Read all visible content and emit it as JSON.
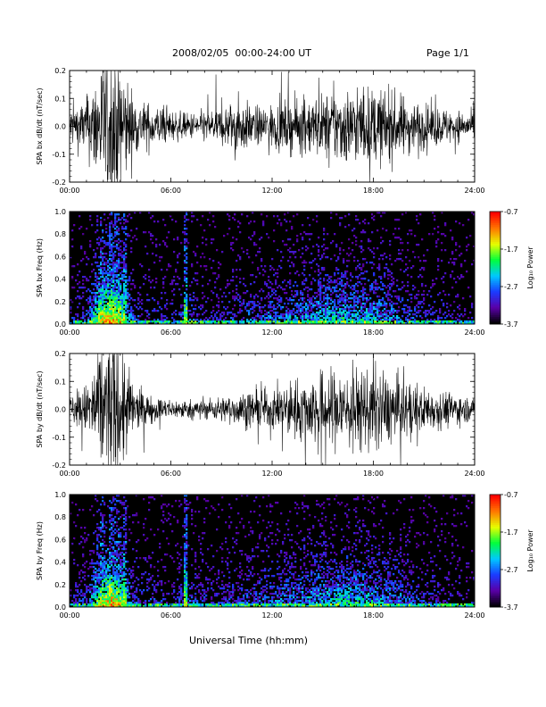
{
  "header": {
    "title": "2008/02/05  00:00-24:00 UT",
    "page": "Page 1/1"
  },
  "footer": {
    "xlabel": "Universal Time (hh:mm)"
  },
  "colorbar": {
    "label": "Log₁₀ Power",
    "tick_labels": [
      "-0.7",
      "-1.7",
      "-2.7",
      "-3.7"
    ],
    "range": [
      -3.7,
      -0.7
    ],
    "colors": [
      "#000000",
      "#5a00a8",
      "#1a3cff",
      "#00c8ff",
      "#00ff3c",
      "#e6ff00",
      "#ff7800",
      "#ff0000"
    ]
  },
  "chart_data": [
    {
      "type": "line",
      "ylabel": "SPA bx dB/dt (nT/sec)",
      "x_range_hours": [
        0,
        24
      ],
      "xtick_labels": [
        "00:00",
        "06:00",
        "12:00",
        "18:00",
        "24:00"
      ],
      "ylim": [
        -0.2,
        0.2
      ],
      "ytick_labels": [
        "0.2",
        "0.1",
        "0.0",
        "-0.1",
        "-0.2"
      ],
      "line_color": "#000000",
      "envelope": {
        "hours": [
          0,
          1,
          1.8,
          2.2,
          2.5,
          3,
          3.5,
          4,
          5,
          6,
          7,
          8,
          9,
          10,
          11,
          12,
          13,
          14,
          15,
          16,
          17,
          18,
          19,
          20,
          21,
          22,
          23,
          24
        ],
        "amplitude": [
          0.06,
          0.09,
          0.2,
          0.25,
          0.25,
          0.22,
          0.14,
          0.08,
          0.07,
          0.05,
          0.04,
          0.05,
          0.06,
          0.09,
          0.06,
          0.07,
          0.08,
          0.09,
          0.1,
          0.12,
          0.12,
          0.12,
          0.11,
          0.09,
          0.07,
          0.06,
          0.05,
          0.04
        ]
      }
    },
    {
      "type": "heatmap",
      "ylabel": "SPA bx Freq (Hz)",
      "x_range_hours": [
        0,
        24
      ],
      "xtick_labels": [
        "00:00",
        "06:00",
        "12:00",
        "18:00",
        "24:00"
      ],
      "ylim": [
        0.0,
        1.0
      ],
      "ytick_labels": [
        "1.0",
        "0.8",
        "0.6",
        "0.4",
        "0.2",
        "0.0"
      ],
      "value_units": "Log10 Power",
      "value_range": [
        -3.7,
        -0.7
      ],
      "activity": {
        "hours": [
          0,
          1,
          1.8,
          2.2,
          2.5,
          3,
          3.5,
          4,
          5,
          6,
          7,
          8,
          9,
          10,
          11,
          12,
          13,
          14,
          15,
          16,
          17,
          18,
          19,
          20,
          21,
          22,
          23,
          24
        ],
        "level": [
          0.2,
          0.3,
          0.9,
          0.95,
          1.0,
          0.9,
          0.5,
          0.3,
          0.25,
          0.2,
          0.35,
          0.2,
          0.2,
          0.3,
          0.35,
          0.4,
          0.45,
          0.5,
          0.55,
          0.6,
          0.55,
          0.55,
          0.45,
          0.35,
          0.25,
          0.2,
          0.15,
          0.12
        ]
      },
      "bright_streaks_hours": [
        1.9,
        2.4,
        2.8,
        3.3,
        6.9
      ]
    },
    {
      "type": "line",
      "ylabel": "SPA by dB/dt (nT/sec)",
      "x_range_hours": [
        0,
        24
      ],
      "xtick_labels": [
        "00:00",
        "06:00",
        "12:00",
        "18:00",
        "24:00"
      ],
      "ylim": [
        -0.2,
        0.2
      ],
      "ytick_labels": [
        "0.2",
        "0.1",
        "0.0",
        "-0.1",
        "-0.2"
      ],
      "line_color": "#000000",
      "envelope": {
        "hours": [
          0,
          1,
          1.8,
          2.2,
          2.5,
          3,
          3.5,
          4,
          5,
          6,
          7,
          8,
          9,
          10,
          11,
          12,
          13,
          14,
          15,
          16,
          17,
          18,
          19,
          20,
          21,
          22,
          23,
          24
        ],
        "amplitude": [
          0.04,
          0.08,
          0.2,
          0.25,
          0.25,
          0.23,
          0.13,
          0.06,
          0.04,
          0.03,
          0.03,
          0.03,
          0.04,
          0.05,
          0.06,
          0.06,
          0.09,
          0.1,
          0.12,
          0.13,
          0.13,
          0.13,
          0.11,
          0.09,
          0.07,
          0.06,
          0.05,
          0.03
        ]
      }
    },
    {
      "type": "heatmap",
      "ylabel": "SPA by Freq (Hz)",
      "x_range_hours": [
        0,
        24
      ],
      "xtick_labels": [
        "00:00",
        "06:00",
        "12:00",
        "18:00",
        "24:00"
      ],
      "ylim": [
        0.0,
        1.0
      ],
      "ytick_labels": [
        "1.0",
        "0.8",
        "0.6",
        "0.4",
        "0.2",
        "0.0"
      ],
      "value_units": "Log10 Power",
      "value_range": [
        -3.7,
        -0.7
      ],
      "activity": {
        "hours": [
          0,
          1,
          1.8,
          2.2,
          2.5,
          3,
          3.5,
          4,
          5,
          6,
          7,
          8,
          9,
          10,
          11,
          12,
          13,
          14,
          15,
          16,
          17,
          18,
          19,
          20,
          21,
          22,
          23,
          24
        ],
        "level": [
          0.2,
          0.3,
          0.85,
          0.95,
          1.0,
          0.9,
          0.45,
          0.3,
          0.25,
          0.2,
          0.35,
          0.25,
          0.25,
          0.3,
          0.35,
          0.4,
          0.45,
          0.5,
          0.55,
          0.6,
          0.6,
          0.55,
          0.45,
          0.35,
          0.25,
          0.2,
          0.15,
          0.12
        ]
      },
      "bright_streaks_hours": [
        1.9,
        2.4,
        2.8,
        3.3,
        6.9
      ]
    }
  ]
}
